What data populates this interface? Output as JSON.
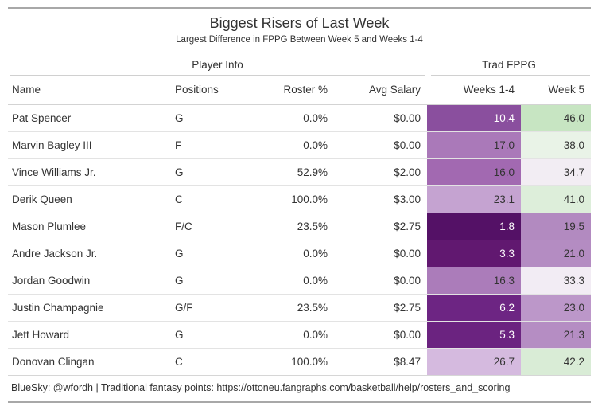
{
  "title": "Biggest Risers of Last Week",
  "subtitle": "Largest Difference in FPPG Between Week 5 and Weeks 1-4",
  "spanners": {
    "player_info": "Player Info",
    "trad_fppg": "Trad FPPG"
  },
  "columns": [
    "Name",
    "Positions",
    "Roster %",
    "Avg Salary",
    "Weeks 1-4",
    "Week 5"
  ],
  "rows": [
    {
      "name": "Pat Spencer",
      "positions": "G",
      "roster_pct": "0.0%",
      "avg_salary": "$0.00",
      "weeks_1_4": "10.4",
      "week_5": "46.0",
      "w14_bg": "#8a4f9e",
      "w14_fg": "#ffffff",
      "w5_bg": "#c7e5c2",
      "w5_fg": "#333333"
    },
    {
      "name": "Marvin Bagley III",
      "positions": "F",
      "roster_pct": "0.0%",
      "avg_salary": "$0.00",
      "weeks_1_4": "17.0",
      "week_5": "38.0",
      "w14_bg": "#aa79b9",
      "w14_fg": "#333333",
      "w5_bg": "#e9f3e7",
      "w5_fg": "#333333"
    },
    {
      "name": "Vince Williams Jr.",
      "positions": "G",
      "roster_pct": "52.9%",
      "avg_salary": "$2.00",
      "weeks_1_4": "16.0",
      "week_5": "34.7",
      "w14_bg": "#a269b1",
      "w14_fg": "#333333",
      "w5_bg": "#f2edf3",
      "w5_fg": "#333333"
    },
    {
      "name": "Derik Queen",
      "positions": "C",
      "roster_pct": "100.0%",
      "avg_salary": "$3.00",
      "weeks_1_4": "23.1",
      "week_5": "41.0",
      "w14_bg": "#c5a3d1",
      "w14_fg": "#333333",
      "w5_bg": "#ddeeda",
      "w5_fg": "#333333"
    },
    {
      "name": "Mason Plumlee",
      "positions": "F/C",
      "roster_pct": "23.5%",
      "avg_salary": "$2.75",
      "weeks_1_4": "1.8",
      "week_5": "19.5",
      "w14_bg": "#541166",
      "w14_fg": "#ffffff",
      "w5_bg": "#b28ac0",
      "w5_fg": "#333333"
    },
    {
      "name": "Andre Jackson Jr.",
      "positions": "G",
      "roster_pct": "0.0%",
      "avg_salary": "$0.00",
      "weeks_1_4": "3.3",
      "week_5": "21.0",
      "w14_bg": "#611870",
      "w14_fg": "#ffffff",
      "w5_bg": "#b48cc2",
      "w5_fg": "#333333"
    },
    {
      "name": "Jordan Goodwin",
      "positions": "G",
      "roster_pct": "0.0%",
      "avg_salary": "$0.00",
      "weeks_1_4": "16.3",
      "week_5": "33.3",
      "w14_bg": "#ab7cba",
      "w14_fg": "#333333",
      "w5_bg": "#f2ecf4",
      "w5_fg": "#333333"
    },
    {
      "name": "Justin Champagnie",
      "positions": "G/F",
      "roster_pct": "23.5%",
      "avg_salary": "$2.75",
      "weeks_1_4": "6.2",
      "week_5": "23.0",
      "w14_bg": "#6d2583",
      "w14_fg": "#ffffff",
      "w5_bg": "#bc97c9",
      "w5_fg": "#333333"
    },
    {
      "name": "Jett Howard",
      "positions": "G",
      "roster_pct": "0.0%",
      "avg_salary": "$0.00",
      "weeks_1_4": "5.3",
      "week_5": "21.3",
      "w14_bg": "#6b2380",
      "w14_fg": "#ffffff",
      "w5_bg": "#b58dc3",
      "w5_fg": "#333333"
    },
    {
      "name": "Donovan Clingan",
      "positions": "C",
      "roster_pct": "100.0%",
      "avg_salary": "$8.47",
      "weeks_1_4": "26.7",
      "week_5": "42.2",
      "w14_bg": "#d5badf",
      "w14_fg": "#333333",
      "w5_bg": "#d9ecd6",
      "w5_fg": "#333333"
    }
  ],
  "footer": "BlueSky: @wfordh | Traditional fantasy points: https://ottoneu.fangraphs.com/basketball/help/rosters_and_scoring",
  "colors": {
    "outer_border": "#a8a8a8",
    "inner_border": "#d6d6d6",
    "row_border": "#e3e3e3",
    "text": "#333333",
    "heatmap_low": "#541166",
    "heatmap_mid": "#f5f0f5",
    "heatmap_high": "#c7e5c2"
  },
  "chart_data": {
    "type": "table",
    "title": "Biggest Risers of Last Week",
    "subtitle": "Largest Difference in FPPG Between Week 5 and Weeks 1-4",
    "column_groups": [
      {
        "label": "Player Info",
        "columns": [
          "Name",
          "Positions",
          "Roster %",
          "Avg Salary"
        ]
      },
      {
        "label": "Trad FPPG",
        "columns": [
          "Weeks 1-4",
          "Week 5"
        ]
      }
    ],
    "columns": [
      "Name",
      "Positions",
      "Roster %",
      "Avg Salary",
      "Weeks 1-4",
      "Week 5"
    ],
    "rows": [
      [
        "Pat Spencer",
        "G",
        0.0,
        0.0,
        10.4,
        46.0
      ],
      [
        "Marvin Bagley III",
        "F",
        0.0,
        0.0,
        17.0,
        38.0
      ],
      [
        "Vince Williams Jr.",
        "G",
        52.9,
        2.0,
        16.0,
        34.7
      ],
      [
        "Derik Queen",
        "C",
        100.0,
        3.0,
        23.1,
        41.0
      ],
      [
        "Mason Plumlee",
        "F/C",
        23.5,
        2.75,
        1.8,
        19.5
      ],
      [
        "Andre Jackson Jr.",
        "G",
        0.0,
        0.0,
        3.3,
        21.0
      ],
      [
        "Jordan Goodwin",
        "G",
        0.0,
        0.0,
        16.3,
        33.3
      ],
      [
        "Justin Champagnie",
        "G/F",
        23.5,
        2.75,
        6.2,
        23.0
      ],
      [
        "Jett Howard",
        "G",
        0.0,
        0.0,
        5.3,
        21.3
      ],
      [
        "Donovan Clingan",
        "C",
        100.0,
        8.47,
        26.7,
        42.2
      ]
    ],
    "heatmap_columns": [
      "Weeks 1-4",
      "Week 5"
    ],
    "color_scale": {
      "type": "diverging",
      "low_color": "#541166",
      "mid_color": "#f5f0f5",
      "high_color": "#c7e5c2",
      "domain": [
        1.8,
        46.0
      ]
    },
    "source_note": "BlueSky: @wfordh | Traditional fantasy points: https://ottoneu.fangraphs.com/basketball/help/rosters_and_scoring"
  }
}
